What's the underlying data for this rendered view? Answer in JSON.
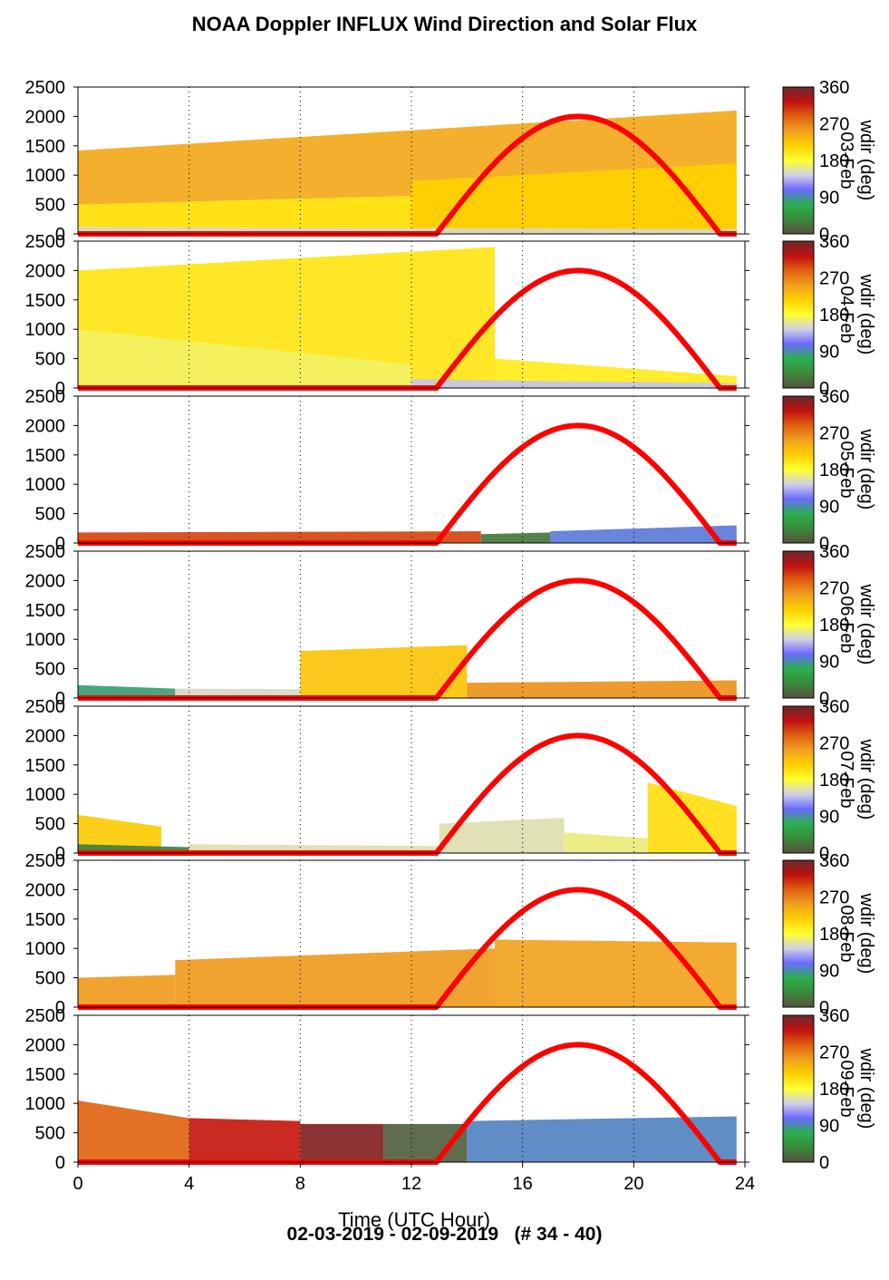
{
  "title": "NOAA Doppler INFLUX Wind Direction and Solar Flux",
  "footer": "02-03-2019 - 02-09-2019   (# 34 - 40)",
  "xlabel": "Time (UTC Hour)",
  "colors": {
    "solar_curve": "#ff0000",
    "colormap": [
      "#5a5040",
      "#3a8a3a",
      "#2ab050",
      "#6a6aff",
      "#d0d0e8",
      "#ffff30",
      "#ffd000",
      "#f0a020",
      "#e06010",
      "#c01010",
      "#6a2a2a"
    ]
  },
  "chart_data": {
    "type": "heatmap",
    "x_ticks": [
      "0",
      "4",
      "8",
      "12",
      "16",
      "20",
      "24"
    ],
    "y_ticks": [
      "0",
      "500",
      "1000",
      "1500",
      "2000",
      "2500"
    ],
    "x_range": [
      0,
      24
    ],
    "y_range": [
      0,
      2500
    ],
    "colorbar": {
      "label": "wdir (deg)",
      "ticks": [
        "0",
        "90",
        "180",
        "270",
        "360"
      ],
      "range": [
        0,
        360
      ]
    },
    "solar_flux": {
      "rise_hour": 12.9,
      "peak_hour": 18.0,
      "set_hour": 23.1,
      "peak_plot_value": 2000
    },
    "panels": [
      {
        "panel_label": "03-Feb",
        "layers": [
          {
            "x_start": 0,
            "x_end": 23.7,
            "height_start": 1420,
            "height_end": 2100,
            "wdir": 245
          },
          {
            "x_start": 0,
            "x_end": 12,
            "height_start": 500,
            "height_end": 650,
            "wdir": 200
          },
          {
            "x_start": 12,
            "x_end": 23.7,
            "height_start": 900,
            "height_end": 1200,
            "wdir": 215
          },
          {
            "x_start": 0,
            "x_end": 23.7,
            "height_start": 120,
            "height_end": 80,
            "wdir": 150
          }
        ]
      },
      {
        "panel_label": "04-Feb",
        "layers": [
          {
            "x_start": 0,
            "x_end": 15,
            "height_start": 2000,
            "height_end": 2400,
            "wdir": 200
          },
          {
            "x_start": 15,
            "x_end": 23.7,
            "height_start": 500,
            "height_end": 200,
            "wdir": 195
          },
          {
            "x_start": 0,
            "x_end": 12,
            "height_start": 1000,
            "height_end": 400,
            "wdir": 170
          },
          {
            "x_start": 12,
            "x_end": 23.7,
            "height_start": 150,
            "height_end": 80,
            "wdir": 140
          }
        ]
      },
      {
        "panel_label": "05-Feb",
        "layers": [
          {
            "x_start": 0,
            "x_end": 14.5,
            "height_start": 180,
            "height_end": 200,
            "wdir": 300
          },
          {
            "x_start": 14.5,
            "x_end": 17,
            "height_start": 150,
            "height_end": 180,
            "wdir": 25
          },
          {
            "x_start": 17,
            "x_end": 23.7,
            "height_start": 200,
            "height_end": 300,
            "wdir": 100
          }
        ]
      },
      {
        "panel_label": "06-Feb",
        "layers": [
          {
            "x_start": 0,
            "x_end": 3.5,
            "height_start": 220,
            "height_end": 160,
            "wdir": 80
          },
          {
            "x_start": 3.5,
            "x_end": 8,
            "height_start": 160,
            "height_end": 150,
            "wdir": 150
          },
          {
            "x_start": 8,
            "x_end": 14,
            "height_start": 800,
            "height_end": 900,
            "wdir": 225
          },
          {
            "x_start": 14,
            "x_end": 23.7,
            "height_start": 260,
            "height_end": 300,
            "wdir": 260
          }
        ]
      },
      {
        "panel_label": "07-Feb",
        "layers": [
          {
            "x_start": 0,
            "x_end": 3,
            "height_start": 650,
            "height_end": 450,
            "wdir": 220
          },
          {
            "x_start": 0,
            "x_end": 4,
            "height_start": 150,
            "height_end": 100,
            "wdir": 30
          },
          {
            "x_start": 4,
            "x_end": 13,
            "height_start": 150,
            "height_end": 120,
            "wdir": 155
          },
          {
            "x_start": 13,
            "x_end": 17.5,
            "height_start": 500,
            "height_end": 600,
            "wdir": 155
          },
          {
            "x_start": 17.5,
            "x_end": 20.5,
            "height_start": 350,
            "height_end": 250,
            "wdir": 165
          },
          {
            "x_start": 20.5,
            "x_end": 23.7,
            "height_start": 1200,
            "height_end": 800,
            "wdir": 205
          }
        ]
      },
      {
        "panel_label": "08-Feb",
        "layers": [
          {
            "x_start": 0,
            "x_end": 3.5,
            "height_start": 500,
            "height_end": 550,
            "wdir": 255
          },
          {
            "x_start": 3.5,
            "x_end": 15,
            "height_start": 800,
            "height_end": 1000,
            "wdir": 255
          },
          {
            "x_start": 15,
            "x_end": 23.7,
            "height_start": 1150,
            "height_end": 1100,
            "wdir": 250
          }
        ]
      },
      {
        "panel_label": "09-Feb",
        "layers": [
          {
            "x_start": 0,
            "x_end": 4,
            "height_start": 1050,
            "height_end": 750,
            "wdir": 285
          },
          {
            "x_start": 4,
            "x_end": 8,
            "height_start": 750,
            "height_end": 700,
            "wdir": 320
          },
          {
            "x_start": 8,
            "x_end": 11,
            "height_start": 650,
            "height_end": 650,
            "wdir": 350
          },
          {
            "x_start": 11,
            "x_end": 14,
            "height_start": 650,
            "height_end": 650,
            "wdir": 10
          },
          {
            "x_start": 14,
            "x_end": 23.7,
            "height_start": 700,
            "height_end": 780,
            "wdir": 95
          }
        ]
      }
    ]
  }
}
